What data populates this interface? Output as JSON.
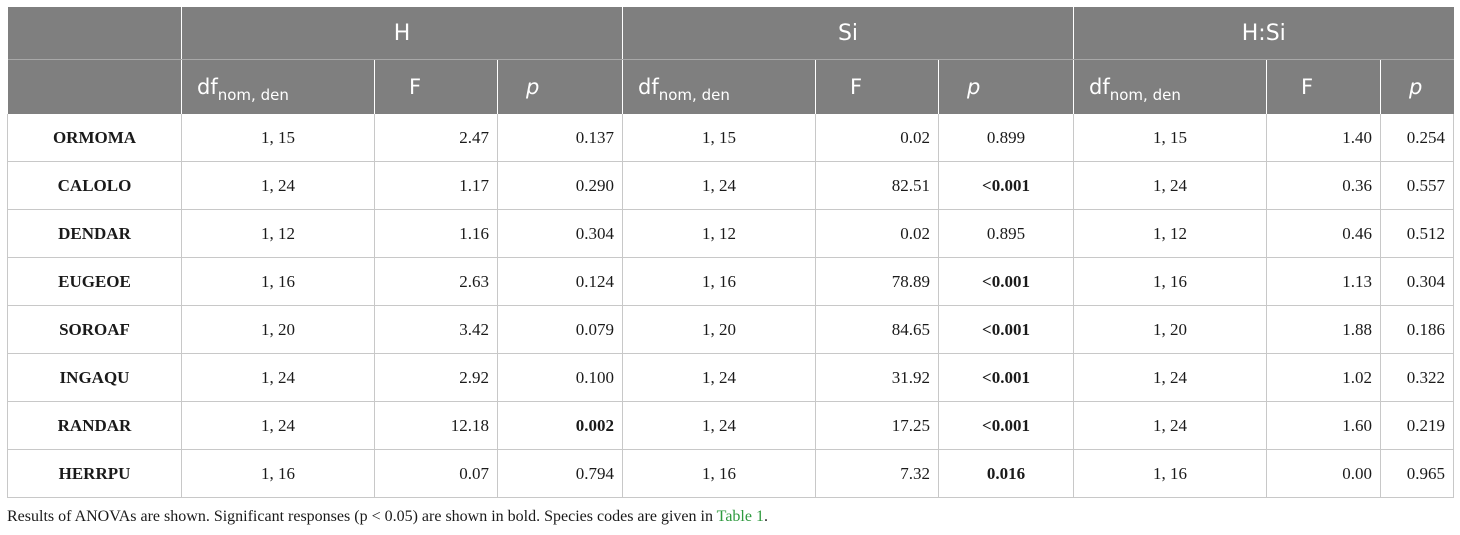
{
  "table": {
    "groups": [
      "H",
      "Si",
      "H:Si"
    ],
    "subheaders": {
      "df": "df",
      "df_sub": "nom, den",
      "f": "F",
      "p": "p"
    },
    "rows": [
      {
        "species": "ORMOMA",
        "h_df": "1, 15",
        "h_f": "2.47",
        "h_p": "0.137",
        "si_df": "1, 15",
        "si_f": "0.02",
        "si_p": "0.899",
        "hs_df": "1, 15",
        "hs_f": "1.40",
        "hs_p": "0.254"
      },
      {
        "species": "CALOLO",
        "h_df": "1, 24",
        "h_f": "1.17",
        "h_p": "0.290",
        "si_df": "1, 24",
        "si_f": "82.51",
        "si_p": "<0.001",
        "hs_df": "1, 24",
        "hs_f": "0.36",
        "hs_p": "0.557"
      },
      {
        "species": "DENDAR",
        "h_df": "1, 12",
        "h_f": "1.16",
        "h_p": "0.304",
        "si_df": "1, 12",
        "si_f": "0.02",
        "si_p": "0.895",
        "hs_df": "1, 12",
        "hs_f": "0.46",
        "hs_p": "0.512"
      },
      {
        "species": "EUGEOE",
        "h_df": "1, 16",
        "h_f": "2.63",
        "h_p": "0.124",
        "si_df": "1, 16",
        "si_f": "78.89",
        "si_p": "<0.001",
        "hs_df": "1, 16",
        "hs_f": "1.13",
        "hs_p": "0.304"
      },
      {
        "species": "SOROAF",
        "h_df": "1, 20",
        "h_f": "3.42",
        "h_p": "0.079",
        "si_df": "1, 20",
        "si_f": "84.65",
        "si_p": "<0.001",
        "hs_df": "1, 20",
        "hs_f": "1.88",
        "hs_p": "0.186"
      },
      {
        "species": "INGAQU",
        "h_df": "1, 24",
        "h_f": "2.92",
        "h_p": "0.100",
        "si_df": "1, 24",
        "si_f": "31.92",
        "si_p": "<0.001",
        "hs_df": "1, 24",
        "hs_f": "1.02",
        "hs_p": "0.322"
      },
      {
        "species": "RANDAR",
        "h_df": "1, 24",
        "h_f": "12.18",
        "h_p": "0.002",
        "si_df": "1, 24",
        "si_f": "17.25",
        "si_p": "<0.001",
        "hs_df": "1, 24",
        "hs_f": "1.60",
        "hs_p": "0.219"
      },
      {
        "species": "HERRPU",
        "h_df": "1, 16",
        "h_f": "0.07",
        "h_p": "0.794",
        "si_df": "1, 16",
        "si_f": "7.32",
        "si_p": "0.016",
        "hs_df": "1, 16",
        "hs_f": "0.00",
        "hs_p": "0.965"
      }
    ]
  },
  "caption": {
    "text": "Results of ANOVAs are shown. Significant responses (p < 0.05) are shown in bold. Species codes are given in ",
    "link": "Table 1",
    "end": "."
  }
}
